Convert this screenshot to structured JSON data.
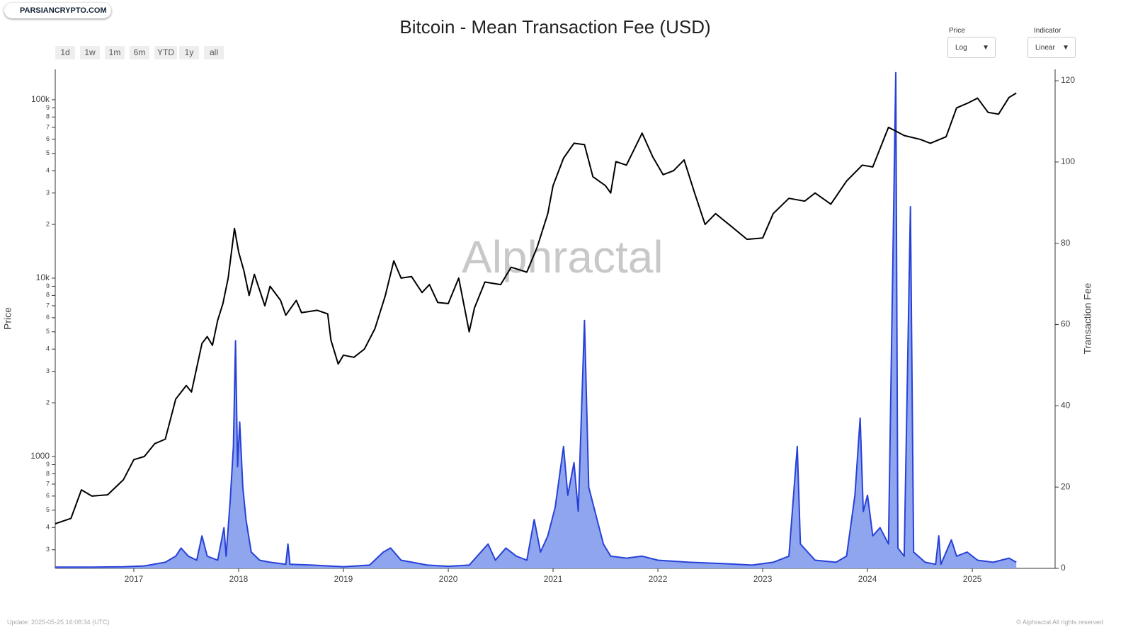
{
  "brand": "PARSIANCRYPTO.COM",
  "watermark": "Alphractal",
  "ranges": [
    "1d",
    "1w",
    "1m",
    "6m",
    "YTD",
    "1y",
    "all"
  ],
  "price_scale": {
    "label": "Price",
    "value": "Log"
  },
  "indicator_scale": {
    "label": "Indicator",
    "value": "Linear"
  },
  "footer": {
    "update": "Update: 2025-05-25 16:08:34 (UTC)",
    "copyright": "© Alphractal All rights reserved"
  },
  "chart_data": {
    "type": "line",
    "title": "Bitcoin - Mean Transaction Fee (USD)",
    "ylabel": "Price",
    "y2label": "Transaction Fee",
    "log_y": true,
    "xlim": [
      2016.25,
      2025.79
    ],
    "xticks": [
      2017,
      2018,
      2019,
      2020,
      2021,
      2022,
      2023,
      2024,
      2025
    ],
    "ylim": [
      236,
      148000
    ],
    "yticks": [
      {
        "value": 300,
        "label": "3"
      },
      {
        "value": 400,
        "label": "4"
      },
      {
        "value": 500,
        "label": "5"
      },
      {
        "value": 600,
        "label": "6"
      },
      {
        "value": 700,
        "label": "7"
      },
      {
        "value": 800,
        "label": "8"
      },
      {
        "value": 900,
        "label": "9"
      },
      1000,
      {
        "value": 2000,
        "label": "2"
      },
      {
        "value": 3000,
        "label": "3"
      },
      {
        "value": 4000,
        "label": "4"
      },
      {
        "value": 5000,
        "label": "5"
      },
      {
        "value": 6000,
        "label": "6"
      },
      {
        "value": 7000,
        "label": "7"
      },
      {
        "value": 8000,
        "label": "8"
      },
      {
        "value": 9000,
        "label": "9"
      },
      {
        "value": 10000,
        "label": "10k"
      },
      {
        "value": 20000,
        "label": "2"
      },
      {
        "value": 30000,
        "label": "3"
      },
      {
        "value": 40000,
        "label": "4"
      },
      {
        "value": 50000,
        "label": "5"
      },
      {
        "value": 60000,
        "label": "6"
      },
      {
        "value": 70000,
        "label": "7"
      },
      {
        "value": 80000,
        "label": "8"
      },
      {
        "value": 90000,
        "label": "9"
      },
      {
        "value": 100000,
        "label": "100k"
      }
    ],
    "y2lim": [
      0,
      122.8
    ],
    "y2ticks": [
      0,
      20,
      40,
      60,
      80,
      100,
      120
    ],
    "series": [
      {
        "color": "#000000",
        "x": [
          2016.25,
          2016.4,
          2016.5,
          2016.6,
          2016.75,
          2016.9,
          2017.0,
          2017.1,
          2017.2,
          2017.3,
          2017.4,
          2017.5,
          2017.55,
          2017.65,
          2017.7,
          2017.75,
          2017.8,
          2017.85,
          2017.9,
          2017.96,
          2018.0,
          2018.05,
          2018.1,
          2018.15,
          2018.25,
          2018.3,
          2018.4,
          2018.45,
          2018.55,
          2018.6,
          2018.75,
          2018.85,
          2018.88,
          2018.95,
          2019.0,
          2019.1,
          2019.2,
          2019.3,
          2019.4,
          2019.48,
          2019.55,
          2019.65,
          2019.75,
          2019.82,
          2019.9,
          2020.0,
          2020.1,
          2020.2,
          2020.25,
          2020.35,
          2020.5,
          2020.6,
          2020.75,
          2020.85,
          2020.95,
          2021.0,
          2021.1,
          2021.2,
          2021.3,
          2021.38,
          2021.5,
          2021.55,
          2021.6,
          2021.7,
          2021.85,
          2021.95,
          2022.05,
          2022.15,
          2022.25,
          2022.35,
          2022.45,
          2022.55,
          2022.7,
          2022.85,
          2023.0,
          2023.1,
          2023.25,
          2023.4,
          2023.5,
          2023.65,
          2023.8,
          2023.95,
          2024.05,
          2024.2,
          2024.35,
          2024.5,
          2024.6,
          2024.75,
          2024.85,
          2024.96,
          2025.05,
          2025.15,
          2025.25,
          2025.35,
          2025.42
        ],
        "values": [
          420,
          450,
          650,
          600,
          610,
          740,
          960,
          1000,
          1180,
          1250,
          2100,
          2500,
          2300,
          4300,
          4700,
          4200,
          5800,
          7200,
          10000,
          19000,
          14000,
          11000,
          8000,
          10500,
          7000,
          9000,
          7500,
          6200,
          7500,
          6400,
          6600,
          6300,
          4500,
          3300,
          3700,
          3600,
          4000,
          5200,
          8000,
          12500,
          10000,
          10200,
          8300,
          9200,
          7300,
          7200,
          10000,
          5000,
          6800,
          9500,
          9200,
          11500,
          10800,
          15000,
          23000,
          33000,
          47000,
          57000,
          56000,
          37000,
          33000,
          30000,
          45000,
          43000,
          65000,
          48000,
          38000,
          40000,
          46000,
          30000,
          20000,
          23000,
          19500,
          16500,
          16800,
          23000,
          28000,
          27000,
          30000,
          26000,
          35000,
          43000,
          42000,
          70000,
          63000,
          60000,
          57000,
          62000,
          90000,
          96000,
          102000,
          85000,
          83000,
          103000,
          109000
        ]
      },
      {
        "color": "#2741d8",
        "fill": "#8fa6ee",
        "axis": "y2",
        "x": [
          2016.25,
          2016.6,
          2016.9,
          2017.1,
          2017.3,
          2017.4,
          2017.45,
          2017.52,
          2017.6,
          2017.65,
          2017.7,
          2017.8,
          2017.86,
          2017.88,
          2017.92,
          2017.95,
          2017.97,
          2017.99,
          2018.01,
          2018.04,
          2018.07,
          2018.12,
          2018.2,
          2018.3,
          2018.45,
          2018.47,
          2018.49,
          2018.7,
          2019.0,
          2019.25,
          2019.38,
          2019.45,
          2019.55,
          2019.8,
          2020.0,
          2020.2,
          2020.38,
          2020.45,
          2020.55,
          2020.65,
          2020.75,
          2020.82,
          2020.88,
          2020.95,
          2021.02,
          2021.1,
          2021.14,
          2021.2,
          2021.24,
          2021.3,
          2021.34,
          2021.4,
          2021.48,
          2021.55,
          2021.7,
          2021.85,
          2022.0,
          2022.3,
          2022.6,
          2022.9,
          2023.1,
          2023.25,
          2023.33,
          2023.36,
          2023.5,
          2023.7,
          2023.8,
          2023.88,
          2023.93,
          2023.96,
          2024.0,
          2024.05,
          2024.12,
          2024.2,
          2024.27,
          2024.29,
          2024.35,
          2024.41,
          2024.44,
          2024.55,
          2024.65,
          2024.68,
          2024.7,
          2024.8,
          2024.85,
          2024.95,
          2025.05,
          2025.2,
          2025.35,
          2025.42
        ],
        "values": [
          0.3,
          0.3,
          0.4,
          0.6,
          1.5,
          3,
          5,
          3,
          2,
          8,
          3,
          2,
          10,
          3,
          17,
          30,
          56,
          25,
          36,
          20,
          12,
          4,
          2,
          1.5,
          1,
          6,
          1,
          0.8,
          0.4,
          0.8,
          4,
          5,
          2,
          0.8,
          0.5,
          0.8,
          6,
          2,
          5,
          3,
          2,
          12,
          4,
          8,
          15,
          30,
          18,
          26,
          14,
          61,
          20,
          14,
          6,
          3,
          2.5,
          3,
          2,
          1.5,
          1.2,
          0.8,
          1.5,
          3,
          30,
          6,
          2,
          1.5,
          3,
          18,
          37,
          14,
          18,
          8,
          10,
          6,
          122,
          5,
          3,
          89,
          4,
          1.5,
          1,
          8,
          1,
          7,
          3,
          4,
          2,
          1.5,
          2.5,
          1.5
        ]
      }
    ]
  }
}
